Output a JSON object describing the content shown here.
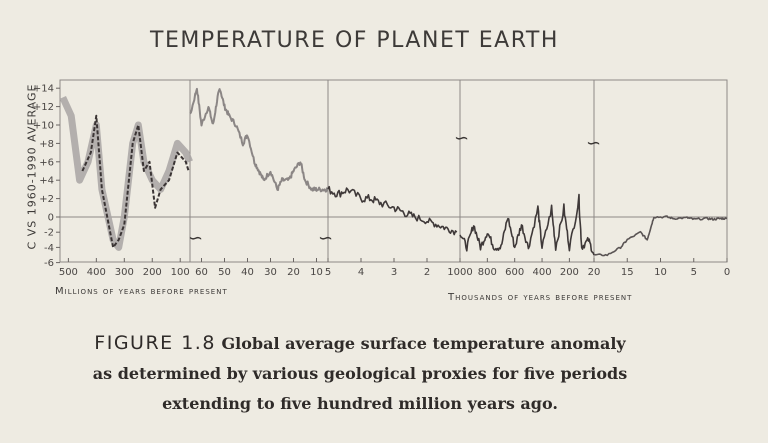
{
  "chart_data": {
    "type": "line",
    "title": "TEMPERATURE OF PLANET EARTH",
    "ylabel": "C VS 1960-1990 AVERAGE",
    "ylim": [
      -6,
      14
    ],
    "yticks": [
      "+14",
      "+12",
      "+10",
      "+8",
      "+6",
      "+4",
      "+2",
      "0",
      "-2",
      "-4",
      "-6"
    ],
    "ytick_values": [
      14,
      12,
      10,
      8,
      6,
      4,
      2,
      0,
      -2,
      -4,
      -6
    ],
    "xlabel_left": "Millions of years before present",
    "xlabel_right": "Thousands of years before present",
    "grid": false,
    "panels": [
      {
        "unit": "Myr",
        "xlim": [
          530,
          65
        ],
        "ticks": [
          500,
          400,
          300,
          200,
          100
        ],
        "series": [
          {
            "style": "band",
            "x": [
              520,
              490,
              460,
              430,
              400,
              380,
              340,
              320,
              300,
              270,
              250,
              230,
              200,
              170,
              140,
              110,
              80,
              66
            ],
            "y": [
              13,
              11,
              4,
              6,
              10,
              3,
              -3,
              -4,
              0,
              8,
              10,
              6,
              4,
              3,
              5,
              8,
              7,
              6
            ]
          },
          {
            "style": "dashed",
            "x": [
              450,
              420,
              400,
              380,
              340,
              320,
              300,
              270,
              250,
              230,
              210,
              190,
              170,
              140,
              110,
              80,
              70
            ],
            "y": [
              5,
              7,
              11,
              3,
              -4,
              -3,
              -1,
              8,
              10,
              5,
              6,
              1,
              3,
              4,
              7,
              6,
              5
            ]
          }
        ]
      },
      {
        "unit": "Myr",
        "xlim": [
          65,
          5
        ],
        "ticks": [
          60,
          50,
          40,
          30,
          20,
          10,
          5
        ],
        "series": [
          {
            "style": "solid",
            "x": [
              65,
              62,
              60,
              57,
              55,
              53,
              52,
              50,
              48,
              45,
              42,
              40,
              37,
              35,
              33,
              30,
              27,
              25,
              22,
              20,
              17,
              15,
              12,
              10,
              7,
              5
            ],
            "y": [
              11,
              14,
              10,
              12,
              10,
              13,
              14,
              12,
              11,
              10,
              8,
              9,
              6,
              5,
              4,
              5,
              3,
              4,
              4,
              5,
              6,
              4,
              3,
              3,
              3,
              3
            ]
          }
        ]
      },
      {
        "unit": "Myr",
        "xlim": [
          5,
          1
        ],
        "ticks": [
          4,
          3,
          2
        ],
        "series": [
          {
            "style": "solid",
            "x": [
              5,
              4.7,
              4.4,
              4,
              3.7,
              3.4,
              3,
              2.7,
              2.4,
              2,
              1.7,
              1.4,
              1.1
            ],
            "y": [
              3,
              2.5,
              3,
              2,
              2,
              1.5,
              1,
              0.5,
              0,
              -0.5,
              -1,
              -1.5,
              -2
            ]
          }
        ]
      },
      {
        "unit": "kyr",
        "xlim": [
          1000,
          20
        ],
        "ticks": [
          1000,
          800,
          600,
          400,
          200
        ],
        "series": [
          {
            "style": "solid",
            "x": [
              1000,
              950,
              900,
              850,
              800,
              750,
              700,
              650,
              600,
              550,
              500,
              430,
              400,
              330,
              300,
              240,
              200,
              130,
              110,
              60,
              20
            ],
            "y": [
              -2,
              -4,
              -1,
              -4,
              -2,
              -4,
              -4,
              0,
              -4,
              -1,
              -4,
              1,
              -4,
              1,
              -4,
              1,
              -4,
              2,
              -4,
              -3,
              -5
            ]
          }
        ]
      },
      {
        "unit": "kyr",
        "xlim": [
          20,
          0
        ],
        "ticks": [
          20,
          15,
          10,
          5,
          0
        ],
        "series": [
          {
            "style": "solid",
            "x": [
              20,
              18,
              16,
              15,
              13,
              12,
              11.5,
              11,
              9,
              8,
              6,
              5,
              3,
              2,
              1,
              0
            ],
            "y": [
              -5,
              -5,
              -4,
              -3,
              -2,
              -3,
              -1.5,
              0,
              0,
              -0.2,
              -0.1,
              -0.3,
              -0.2,
              -0.3,
              -0.2,
              -0.2
            ]
          }
        ]
      }
    ]
  },
  "caption": {
    "label": "Figure 1.8",
    "line1": "Global average surface temperature anomaly",
    "line2": "as determined by various geological proxies for five periods",
    "line3": "extending to five hundred million years ago."
  },
  "colors": {
    "background": "#eeebe2",
    "ink": "#3a3634",
    "band": "#a8a4a3",
    "panel2": "#8b8685",
    "dark": "#3f3939"
  }
}
